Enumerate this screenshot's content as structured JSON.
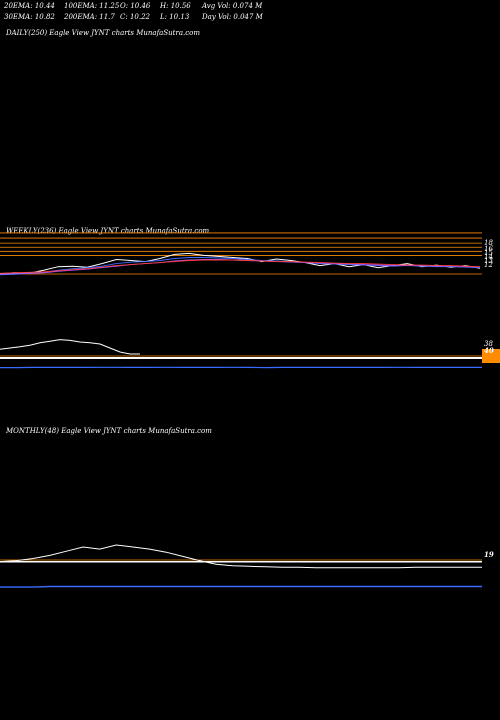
{
  "header": {
    "row1": [
      "20EMA: 10.44",
      "100EMA: 11.25",
      "O: 10.46",
      "H: 10.56",
      "Avg Vol: 0.074  M"
    ],
    "row2": [
      "30EMA: 10.82",
      "200EMA: 11.7",
      "C: 10.22",
      "L: 10.13",
      "Day Vol: 0.047 M"
    ]
  },
  "panels": {
    "daily": {
      "label": "DAILY(250) Eagle   View  JYNT charts MunafaSutra.com"
    },
    "weekly": {
      "label": "WEEKLY(236) Eagle   View  JYNT charts MunafaSutra.com"
    },
    "monthly": {
      "label": "MONTHLY(48) Eagle   View  JYNT charts MunafaSutra.com"
    }
  },
  "chart_data": [
    {
      "type": "line",
      "name": "weekly-price",
      "ylim": [
        8,
        17
      ],
      "price_ticks": [
        "18",
        "16",
        "15",
        "14",
        "13",
        "12"
      ],
      "horizontal_levels": [
        17.6,
        16.6,
        15.6,
        14.8,
        14.0,
        13.2
      ],
      "level_colors": [
        "#ff8c00",
        "#ff8c00",
        "#ff8c00",
        "#ff8c00",
        "#ff8c00",
        "#ff8c00"
      ],
      "series": [
        {
          "color": "#ffffff",
          "values": [
            9.6,
            9.8,
            9.7,
            10.3,
            11.0,
            11.1,
            10.9,
            11.6,
            12.4,
            12.2,
            12.0,
            12.6,
            13.4,
            13.6,
            13.2,
            13.0,
            12.8,
            12.6,
            12.0,
            12.5,
            12.2,
            11.8,
            11.2,
            11.6,
            11.0,
            11.4,
            10.8,
            11.2,
            11.6,
            11.0,
            11.3,
            10.9,
            11.2,
            10.7
          ]
        },
        {
          "color": "#3b6bff",
          "values": [
            9.4,
            9.5,
            9.7,
            9.9,
            10.3,
            10.6,
            10.8,
            11.1,
            11.6,
            11.9,
            12.0,
            12.2,
            12.6,
            12.8,
            12.8,
            12.7,
            12.6,
            12.4,
            12.2,
            12.1,
            12.0,
            11.8,
            11.6,
            11.5,
            11.4,
            11.3,
            11.2,
            11.1,
            11.2,
            11.1,
            11.0,
            11.0,
            10.9,
            10.8
          ]
        },
        {
          "color": "#9b59ff",
          "values": [
            9.5,
            9.6,
            9.7,
            9.8,
            10.1,
            10.3,
            10.5,
            10.8,
            11.1,
            11.4,
            11.6,
            11.8,
            12.1,
            12.3,
            12.4,
            12.4,
            12.3,
            12.2,
            12.1,
            12.0,
            11.9,
            11.8,
            11.7,
            11.6,
            11.5,
            11.4,
            11.3,
            11.2,
            11.2,
            11.2,
            11.1,
            11.1,
            11.0,
            10.9
          ]
        },
        {
          "color": "#ff3b3b",
          "values": [
            9.7,
            9.8,
            9.9,
            10.0,
            10.2,
            10.4,
            10.6,
            10.9,
            11.2,
            11.4,
            11.6,
            11.8,
            12.0,
            12.2,
            12.3,
            12.3,
            12.3,
            12.2,
            12.1,
            12.0,
            12.0,
            11.9,
            11.8,
            11.7,
            11.6,
            11.6,
            11.5,
            11.4,
            11.3,
            11.3,
            11.2,
            11.2,
            11.1,
            11.0
          ]
        }
      ]
    },
    {
      "type": "line",
      "name": "weekly-indicator",
      "ylim": [
        0,
        100
      ],
      "ticks": [
        "38",
        "40"
      ],
      "orange_level": 45,
      "series": [
        {
          "color": "#ffffff",
          "values": [
            52,
            55,
            58,
            62,
            68,
            72,
            76,
            74,
            70,
            68,
            65,
            55,
            45,
            40,
            40
          ]
        },
        {
          "color": "#3b6bff",
          "values": [
            3,
            3,
            4,
            4,
            4,
            4,
            5,
            5,
            4,
            4,
            5,
            4,
            4,
            4,
            5,
            4,
            3,
            4,
            4,
            4,
            4,
            4,
            4,
            4,
            5,
            4,
            4,
            4,
            4,
            4
          ]
        }
      ]
    },
    {
      "type": "line",
      "name": "monthly-indicator",
      "ylim": [
        0,
        100
      ],
      "ticks": [
        "19"
      ],
      "orange_level": 5,
      "series": [
        {
          "color": "#ffffff",
          "values": [
            20,
            22,
            26,
            32,
            40,
            48,
            44,
            52,
            48,
            44,
            38,
            30,
            22,
            15,
            12,
            11,
            10,
            9,
            9,
            8,
            8,
            8,
            8,
            8,
            8,
            9,
            9,
            9,
            9,
            9
          ]
        },
        {
          "color": "#3b6bff",
          "values": [
            5,
            5,
            5,
            6,
            6,
            6,
            6,
            6,
            6,
            6,
            6,
            6,
            6,
            6,
            6,
            6,
            6,
            6,
            6,
            6,
            6,
            6,
            6,
            6,
            6,
            6,
            6,
            6,
            6,
            6
          ]
        }
      ]
    }
  ]
}
